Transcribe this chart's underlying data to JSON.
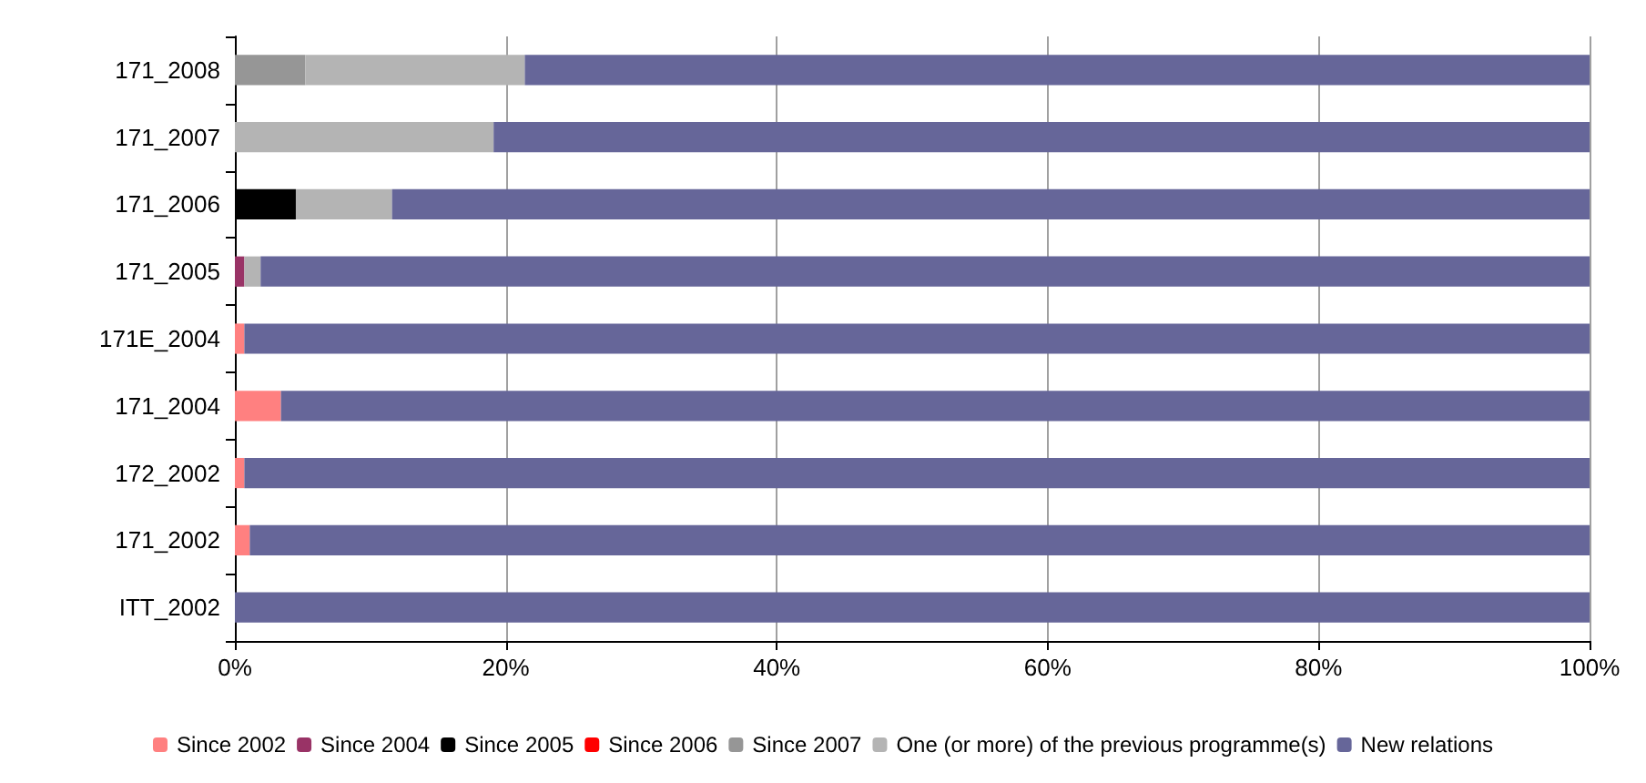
{
  "chart_data": {
    "type": "bar",
    "orientation": "horizontal",
    "stacked": true,
    "categories": [
      "171_2008",
      "171_2007",
      "171_2006",
      "171_2005",
      "171E_2004",
      "171_2004",
      "172_2002",
      "171_2002",
      "ITT_2002"
    ],
    "series": [
      {
        "name": "Since 2002",
        "color": "#ff8080",
        "values": [
          0,
          0,
          0,
          0,
          0.7,
          3.4,
          0.7,
          1.1,
          0
        ]
      },
      {
        "name": "Since 2004",
        "color": "#993366",
        "values": [
          0,
          0,
          0,
          0.7,
          0,
          0,
          0,
          0,
          0
        ]
      },
      {
        "name": "Since 2005",
        "color": "#000000",
        "values": [
          0,
          0,
          4.5,
          0,
          0,
          0,
          0,
          0,
          0
        ]
      },
      {
        "name": "Since 2006",
        "color": "#ff0000",
        "values": [
          0,
          0,
          0,
          0,
          0,
          0,
          0,
          0,
          0
        ]
      },
      {
        "name": "Since 2007",
        "color": "#969696",
        "values": [
          5.2,
          0,
          0,
          0,
          0,
          0,
          0,
          0,
          0
        ]
      },
      {
        "name": "One (or more) of the previous programme(s)",
        "color": "#b4b4b4",
        "values": [
          16.2,
          19.1,
          7.1,
          1.2,
          0,
          0,
          0,
          0,
          0
        ]
      },
      {
        "name": "New relations",
        "color": "#666699",
        "values": [
          78.6,
          80.9,
          88.4,
          98.1,
          99.3,
          96.6,
          99.3,
          98.9,
          100
        ]
      }
    ],
    "xlim": [
      0,
      100
    ],
    "xticks": [
      {
        "value": 0,
        "label": "0%"
      },
      {
        "value": 20,
        "label": "20%"
      },
      {
        "value": 40,
        "label": "40%"
      },
      {
        "value": 60,
        "label": "60%"
      },
      {
        "value": 80,
        "label": "80%"
      },
      {
        "value": 100,
        "label": "100%"
      }
    ],
    "grid": "x",
    "legend": "bottom"
  }
}
